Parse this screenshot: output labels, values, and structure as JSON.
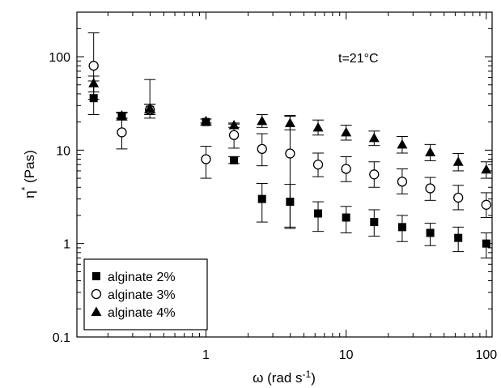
{
  "chart_data": {
    "type": "scatter",
    "title": "",
    "xlabel_main": "ω (rad s",
    "xlabel_sup": "-1",
    "xlabel_close": ")",
    "ylabel_main": "η",
    "ylabel_sup": "*",
    "ylabel_rest": " (Pas)",
    "x_scale": "log",
    "y_scale": "log",
    "xlim": [
      0.12,
      110
    ],
    "ylim": [
      0.1,
      300
    ],
    "x_ticks": [
      {
        "value": 1,
        "label": "1"
      },
      {
        "value": 10,
        "label": "10"
      },
      {
        "value": 100,
        "label": "100"
      }
    ],
    "y_ticks": [
      {
        "value": 0.1,
        "label": "0.1"
      },
      {
        "value": 1,
        "label": "1"
      },
      {
        "value": 10,
        "label": "10"
      },
      {
        "value": 100,
        "label": "100"
      }
    ],
    "annotation": "t=21°C",
    "legend_position": "bottom-left",
    "series": [
      {
        "name": "alginate 2%",
        "marker": "filled-square",
        "x": [
          0.158,
          0.251,
          0.398,
          1.0,
          1.585,
          2.512,
          3.981,
          6.31,
          10.0,
          15.85,
          25.12,
          39.81,
          63.1,
          100.0
        ],
        "y": [
          36,
          23,
          27,
          20,
          7.8,
          3.0,
          2.8,
          2.1,
          1.9,
          1.7,
          1.5,
          1.3,
          1.15,
          1.0
        ],
        "err_low": [
          24,
          21,
          22,
          18.5,
          7.2,
          1.7,
          1.45,
          1.35,
          1.3,
          1.2,
          1.05,
          0.95,
          0.82,
          0.7
        ],
        "err_high": [
          55,
          25.5,
          31,
          21.5,
          8.5,
          4.4,
          4.3,
          2.8,
          2.5,
          2.3,
          2.0,
          1.65,
          1.5,
          1.3
        ]
      },
      {
        "name": "alginate 3%",
        "marker": "open-circle",
        "x": [
          0.158,
          0.251,
          0.398,
          1.0,
          1.585,
          2.512,
          3.981,
          6.31,
          10.0,
          15.85,
          25.12,
          39.81,
          63.1,
          100.0
        ],
        "y": [
          80,
          15.5,
          27,
          8.0,
          14.5,
          10.3,
          9.2,
          7.0,
          6.3,
          5.5,
          4.6,
          3.9,
          3.1,
          2.6
        ],
        "err_low": [
          35,
          10.3,
          24,
          5.0,
          10.5,
          6.8,
          1.5,
          5.2,
          4.6,
          4.0,
          3.4,
          2.9,
          2.3,
          1.9
        ],
        "err_high": [
          180,
          22,
          57,
          11,
          19,
          15,
          23,
          9.3,
          8.5,
          7.5,
          6.3,
          5.1,
          4.2,
          3.5
        ]
      },
      {
        "name": "alginate 4%",
        "marker": "filled-triangle",
        "x": [
          0.158,
          0.251,
          0.398,
          1.0,
          1.585,
          2.512,
          3.981,
          6.31,
          10.0,
          15.85,
          25.12,
          39.81,
          63.1,
          100.0
        ],
        "y": [
          52,
          23.5,
          28,
          20.5,
          18.5,
          20.5,
          19.5,
          17.5,
          15.5,
          13.5,
          11.5,
          9.5,
          7.5,
          6.2
        ],
        "err_low": [
          42,
          22,
          25,
          19.5,
          17.5,
          17.5,
          16.5,
          14.5,
          12.8,
          11.2,
          9.3,
          7.7,
          6.0,
          5.0
        ],
        "err_high": [
          62,
          25,
          31,
          21.5,
          19.5,
          24,
          23.5,
          21,
          18.5,
          16,
          14,
          11.5,
          9.2,
          7.5
        ]
      }
    ]
  }
}
